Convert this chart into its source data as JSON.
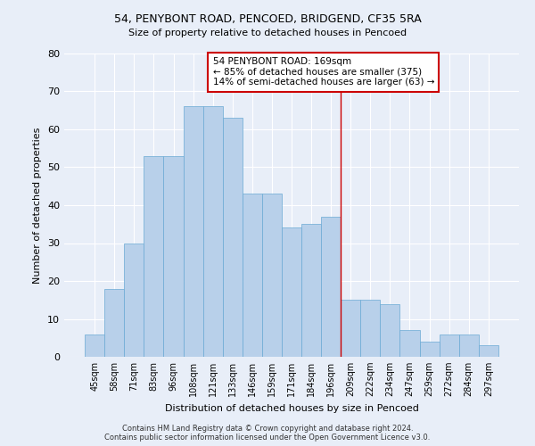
{
  "title1": "54, PENYBONT ROAD, PENCOED, BRIDGEND, CF35 5RA",
  "title2": "Size of property relative to detached houses in Pencoed",
  "xlabel": "Distribution of detached houses by size in Pencoed",
  "ylabel": "Number of detached properties",
  "footnote": "Contains HM Land Registry data © Crown copyright and database right 2024.\nContains public sector information licensed under the Open Government Licence v3.0.",
  "categories": [
    "45sqm",
    "58sqm",
    "71sqm",
    "83sqm",
    "96sqm",
    "108sqm",
    "121sqm",
    "133sqm",
    "146sqm",
    "159sqm",
    "171sqm",
    "184sqm",
    "196sqm",
    "209sqm",
    "222sqm",
    "234sqm",
    "247sqm",
    "259sqm",
    "272sqm",
    "284sqm",
    "297sqm"
  ],
  "bar_heights": [
    6,
    18,
    30,
    53,
    53,
    66,
    66,
    63,
    43,
    43,
    34,
    35,
    37,
    15,
    15,
    14,
    7,
    4,
    6,
    6,
    3
  ],
  "annotation_text": "54 PENYBONT ROAD: 169sqm\n← 85% of detached houses are smaller (375)\n14% of semi-detached houses are larger (63) →",
  "vline_position": 12.5,
  "bar_color": "#b8d0ea",
  "bar_edge_color": "#6aaad4",
  "vline_color": "#cc0000",
  "background_color": "#e8eef8",
  "annotation_box_color": "white",
  "annotation_border_color": "#cc0000",
  "ylim": [
    0,
    80
  ],
  "yticks": [
    0,
    10,
    20,
    30,
    40,
    50,
    60,
    70,
    80
  ]
}
